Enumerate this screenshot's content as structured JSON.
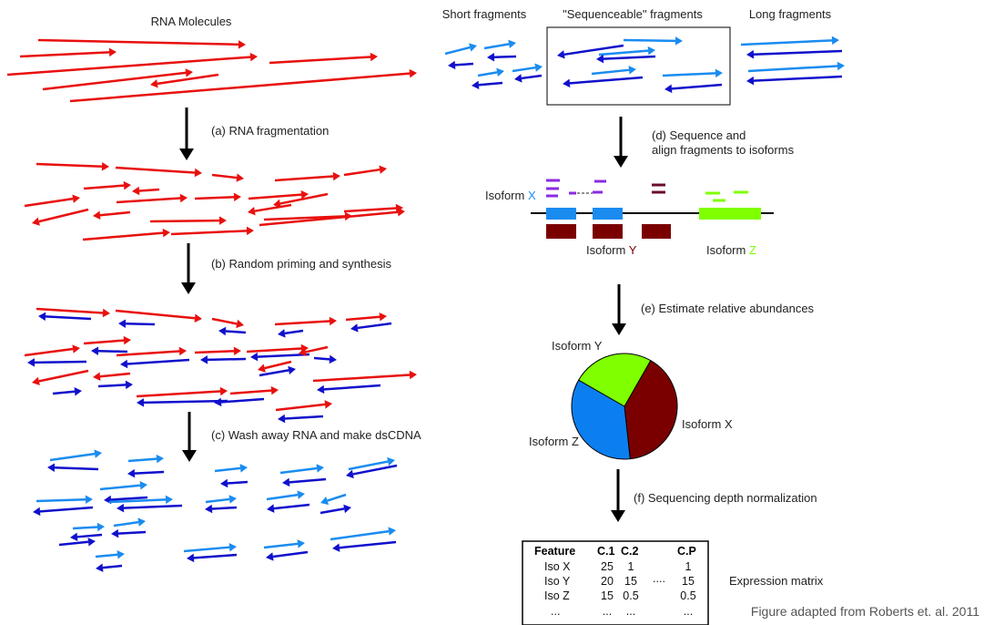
{
  "labels": {
    "rna_molecules": "RNA Molecules",
    "short_fragments": "Short fragments",
    "sequenceable_fragments": "\"Sequenceable\" fragments",
    "long_fragments": "Long fragments",
    "credit": "Figure adapted from Roberts et. al. 2011"
  },
  "steps": {
    "a": "(a) RNA fragmentation",
    "b": "(b) Random priming and synthesis",
    "c": "(c) Wash away RNA and make dsCDNA",
    "d_line1": "(d) Sequence and",
    "d_line2": "align fragments to isoforms",
    "e": "(e) Estimate relative abundances",
    "f": "(f) Sequencing depth normalization"
  },
  "isoforms": {
    "x_prefix": "Isoform ",
    "x_letter": "X",
    "y_prefix": "Isoform ",
    "y_letter": "Y",
    "z_prefix": "Isoform ",
    "z_letter": "Z"
  },
  "pie": {
    "label_y": "Isoform Y",
    "label_x": "Isoform X",
    "label_z": "Isoform Z",
    "slices": [
      {
        "name": "Isoform Y",
        "fraction": 0.4,
        "color": "#7a0000"
      },
      {
        "name": "Isoform X",
        "fraction": 0.35,
        "color": "#0b7ff0"
      },
      {
        "name": "Isoform Z",
        "fraction": 0.25,
        "color": "#7fff00"
      }
    ]
  },
  "matrix": {
    "caption": "Expression matrix",
    "headers": [
      "Feature",
      "C.1",
      "C.2",
      "C.P"
    ],
    "rows": [
      [
        "Iso X",
        "25",
        "1",
        "1"
      ],
      [
        "Iso Y",
        "20",
        "15",
        "15"
      ],
      [
        "Iso Z",
        "15",
        "0.5",
        "0.5"
      ],
      [
        "...",
        "...",
        "...",
        "..."
      ]
    ],
    "ellipsis": "...."
  },
  "colors": {
    "rna": "#e8100e",
    "cdna_dark": "#1010cc",
    "cdna_light": "#1a8cf0",
    "isoform_x": "#1a8cf0",
    "isoform_y": "#7a0000",
    "isoform_z": "#7fff00",
    "purple": "#8a2be2",
    "maroon": "#6a0a2a"
  }
}
